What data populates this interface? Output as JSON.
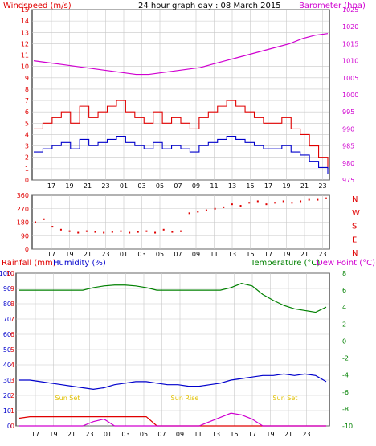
{
  "header": {
    "wind_label": "Windspeed (m/s)",
    "title": "24 hour graph day : 08 March 2015",
    "baro_label": "Barometer (hpa)"
  },
  "colors": {
    "wind_gust": "#e00000",
    "wind_avg": "#0000cc",
    "barometer": "#d000d0",
    "direction": "#e00000",
    "humidity": "#0000cc",
    "temperature": "#008000",
    "rainfall": "#e00000",
    "dewpoint": "#d000d0",
    "grid": "#c8c8c8",
    "sun_label": "#e0c000"
  },
  "x_ticks": [
    "17",
    "19",
    "21",
    "23",
    "01",
    "03",
    "05",
    "07",
    "09",
    "11",
    "13",
    "15",
    "17",
    "19",
    "21",
    "23"
  ],
  "chart_data": [
    {
      "type": "line",
      "name": "wind-barometer",
      "ylabel_left": "Windspeed (m/s)",
      "ylabel_right": "Barometer (hpa)",
      "ylim_left": [
        0,
        15
      ],
      "ylim_right": [
        975,
        1025
      ],
      "left_ticks": [
        "0",
        "1",
        "2",
        "3",
        "4",
        "5",
        "6",
        "7",
        "8",
        "9",
        "10",
        "11",
        "12",
        "13",
        "14",
        "15"
      ],
      "right_ticks": [
        "975",
        "980",
        "985",
        "990",
        "995",
        "1000",
        "1005",
        "1010",
        "1015",
        "1020",
        "1025"
      ],
      "grid": true,
      "series": [
        {
          "name": "Windspeed (m/s)",
          "values": [
            4.5,
            5,
            5.5,
            6,
            5,
            6.5,
            5.5,
            6,
            6.5,
            7,
            6,
            5.5,
            5,
            6,
            5,
            5.5,
            5,
            4.5,
            5.5,
            6,
            6.5,
            7,
            6.5,
            6,
            5.5,
            5,
            5,
            5.5,
            4.5,
            4,
            3,
            2,
            1
          ]
        },
        {
          "name": "Barometer (hpa)",
          "values": [
            1010,
            1009.5,
            1009,
            1008.5,
            1008,
            1007.5,
            1007,
            1006.5,
            1006,
            1006,
            1006.5,
            1007,
            1007.5,
            1008,
            1009,
            1010,
            1011,
            1012,
            1013,
            1014,
            1015,
            1016.5,
            1017.5,
            1018
          ]
        }
      ]
    },
    {
      "type": "scatter",
      "name": "wind-direction",
      "ylim": [
        0,
        360
      ],
      "left_ticks": [
        "0",
        "90",
        "180",
        "270",
        "360"
      ],
      "compass": [
        "N",
        "W",
        "S",
        "E",
        "N"
      ],
      "values": [
        180,
        200,
        150,
        130,
        120,
        110,
        120,
        115,
        110,
        115,
        120,
        110,
        115,
        120,
        110,
        130,
        115,
        120,
        240,
        250,
        260,
        270,
        280,
        300,
        290,
        310,
        320,
        300,
        310,
        320,
        310,
        320,
        330,
        330,
        340
      ]
    },
    {
      "type": "line",
      "name": "humidity-temperature",
      "left_labels": [
        "Rainfall (mm)",
        "Humidity (%)"
      ],
      "right_labels": [
        "Temperature (°C)",
        "Dew Point (°C)"
      ],
      "ylim_rain": [
        0,
        10
      ],
      "ylim_humidity": [
        0,
        100
      ],
      "ylim_temp": [
        -10,
        8
      ],
      "rain_ticks": [
        "0",
        "1",
        "2",
        "3",
        "4",
        "5",
        "6",
        "7",
        "8",
        "9",
        "10"
      ],
      "humidity_ticks": [
        "0",
        "10",
        "20",
        "30",
        "40",
        "50",
        "60",
        "70",
        "80",
        "90",
        "100"
      ],
      "temp_ticks": [
        "-10",
        "-8",
        "-6",
        "-4",
        "-2",
        "0",
        "2",
        "4",
        "6",
        "8"
      ],
      "sun_labels": [
        "Sun Set",
        "Sun Rise",
        "Sun Set"
      ],
      "grid": true,
      "series": [
        {
          "name": "Temperature (°C)",
          "values": [
            6,
            6,
            6,
            6,
            6,
            6,
            6,
            6.3,
            6.5,
            6.6,
            6.6,
            6.5,
            6.3,
            6,
            6,
            6,
            6,
            6,
            6,
            6,
            6.3,
            6.8,
            6.5,
            5.5,
            4.8,
            4.2,
            3.8,
            3.6,
            3.4,
            4
          ]
        },
        {
          "name": "Humidity (%)",
          "values": [
            30,
            30,
            29,
            28,
            27,
            26,
            25,
            24,
            25,
            27,
            28,
            29,
            29,
            28,
            27,
            27,
            26,
            26,
            27,
            28,
            30,
            31,
            32,
            33,
            33,
            34,
            33,
            34,
            33,
            29
          ]
        },
        {
          "name": "Rainfall (mm)",
          "values": [
            0.5,
            0.6,
            0.6,
            0.6,
            0.6,
            0.6,
            0.6,
            0.6,
            0.6,
            0.6,
            0.6,
            0.6,
            0.6,
            0,
            0,
            0,
            0,
            0,
            0,
            0,
            0,
            0,
            0,
            0,
            0,
            0,
            0,
            0,
            0,
            0
          ]
        },
        {
          "name": "Dew Point (°C)",
          "values": [
            -10,
            -10,
            -10,
            -10,
            -10,
            -10,
            -10,
            -9.5,
            -9.2,
            -10,
            -10,
            -10,
            -10,
            -10,
            -10,
            -10,
            -10,
            -10,
            -9.5,
            -9,
            -8.5,
            -8.7,
            -9.2,
            -10,
            -10,
            -10,
            -10,
            -10,
            -10,
            -10
          ]
        }
      ]
    }
  ]
}
